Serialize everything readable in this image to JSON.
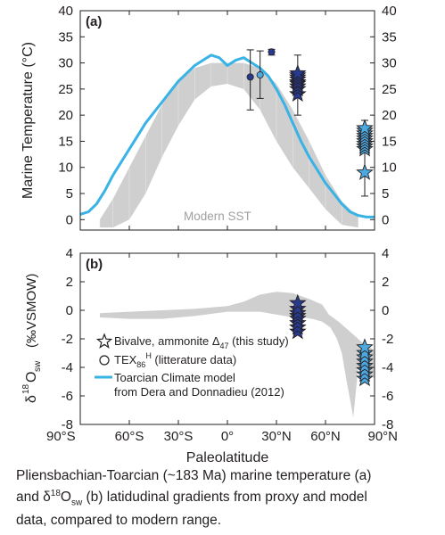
{
  "chart_data": [
    {
      "panel": "a",
      "panel_label": "(a)",
      "type": "line",
      "ylabel": "Marine Temperature (°C)",
      "ylim": [
        -2,
        40
      ],
      "yticks": [
        0,
        5,
        10,
        15,
        20,
        25,
        30,
        35,
        40
      ],
      "xlim": [
        -90,
        90
      ],
      "modern_label": "Modern SST",
      "modern_sst_range": {
        "lat": [
          -78,
          -70,
          -60,
          -50,
          -40,
          -30,
          -20,
          -10,
          0,
          10,
          20,
          30,
          40,
          50,
          60,
          70,
          80
        ],
        "lower": [
          -1.5,
          -1.5,
          0,
          5,
          12,
          18,
          23,
          25.5,
          26,
          25,
          21,
          15,
          10,
          6,
          2,
          -1,
          -1.5
        ],
        "upper": [
          0,
          4,
          10,
          16,
          22,
          26.5,
          29,
          30,
          30,
          30,
          29,
          26,
          21,
          15,
          8.5,
          3.5,
          0.5
        ]
      },
      "model_curve": {
        "lat": [
          -90,
          -85,
          -80,
          -75,
          -70,
          -65,
          -60,
          -55,
          -50,
          -45,
          -40,
          -35,
          -30,
          -25,
          -20,
          -15,
          -10,
          -5,
          0,
          5,
          10,
          15,
          20,
          25,
          30,
          35,
          40,
          45,
          50,
          55,
          60,
          65,
          70,
          75,
          80,
          85,
          90
        ],
        "temp": [
          1,
          1.5,
          3,
          5.5,
          8.5,
          11,
          13.5,
          16,
          18.5,
          20.5,
          22.5,
          24.5,
          26.5,
          28,
          29.5,
          30.5,
          31.5,
          31,
          29.5,
          30.5,
          31,
          30,
          29,
          27.5,
          25,
          22,
          18.5,
          15,
          12,
          9.5,
          7,
          5,
          3,
          1.5,
          0.8,
          0.5,
          0.5
        ]
      },
      "tex86_points": [
        {
          "lat": 14,
          "value": 27.3,
          "low": 21,
          "high": 32.5,
          "color": "#283a8e"
        },
        {
          "lat": 20,
          "value": 27.7,
          "low": 23.2,
          "high": 32.3,
          "color": "#4da8e0"
        },
        {
          "lat": 27,
          "value": 32.1,
          "low": 31.5,
          "high": 32.6,
          "color": "#283a8e"
        }
      ],
      "bivalve_groups": [
        {
          "lat": 43,
          "values": [
            24,
            25,
            25.5,
            26,
            26.3,
            26.8,
            27.2,
            27.6,
            28
          ],
          "low": 20,
          "high": 31.5,
          "color": "#283a8e"
        },
        {
          "lat": 84,
          "values": [
            9,
            13.5,
            14,
            14.5,
            15,
            15.5,
            16,
            16.5,
            17,
            17.5
          ],
          "low": 4.5,
          "high": 19,
          "color": "#4da8e0"
        }
      ]
    },
    {
      "panel": "b",
      "panel_label": "(b)",
      "type": "area",
      "ylabel_main": "δ",
      "ylabel_sup": "18",
      "ylabel_mid": "O",
      "ylabel_sub": "sw",
      "ylabel_unit": "(‰VSMOW)",
      "ylim": [
        -8,
        4
      ],
      "yticks": [
        4,
        2,
        0,
        -2,
        -4,
        -6,
        -8
      ],
      "xlim": [
        -90,
        90
      ],
      "xticks": [
        "90°S",
        "60°S",
        "30°S",
        "0°",
        "30°N",
        "60°N",
        "90°N"
      ],
      "xtick_values": [
        -90,
        -60,
        -30,
        0,
        30,
        60,
        90
      ],
      "xlabel": "Paleolatitude",
      "modern_range_upper": {
        "lat": [
          -78,
          -60,
          -40,
          -20,
          0,
          10,
          20,
          30,
          40,
          50,
          58,
          62,
          68,
          75,
          82,
          90
        ],
        "val": [
          -0.2,
          -0.1,
          0,
          0.1,
          0.3,
          0.6,
          1.1,
          1.3,
          1.2,
          0.8,
          0.4,
          -0.3,
          -0.8,
          -1.5,
          -2.2,
          -2.8
        ]
      },
      "modern_range_lower": {
        "lat": [
          90,
          84,
          80,
          77,
          73,
          70,
          67,
          63,
          58,
          52,
          46,
          40,
          30,
          20,
          10,
          0,
          -20,
          -40,
          -60,
          -78
        ],
        "val": [
          -4.8,
          -4.2,
          -4,
          -7.5,
          -5,
          -3,
          -2,
          -1.2,
          -0.8,
          -0.6,
          -0.5,
          -0.5,
          -0.3,
          -0.1,
          -0.1,
          -0.1,
          -0.4,
          -0.6,
          -0.6,
          -0.5
        ]
      },
      "bivalve_groups": [
        {
          "lat": 43,
          "values": [
            -1.5,
            -1.2,
            -0.9,
            -0.6,
            -0.4,
            -0.2,
            0.1,
            0.5
          ],
          "color": "#283a8e"
        },
        {
          "lat": 84,
          "values": [
            -4.8,
            -4.5,
            -4.2,
            -3.9,
            -3.6,
            -3.3,
            -3,
            -2.6
          ],
          "color": "#4da8e0"
        }
      ],
      "legend": [
        {
          "symbol": "star",
          "label": "Bivalve, ammonite Δ",
          "sub": "47",
          "tail": " (this study)"
        },
        {
          "symbol": "circle",
          "label": "TEX",
          "sub": "86",
          "sup": "H",
          "tail": "  (litterature data)"
        },
        {
          "symbol": "line",
          "label": "Toarcian Climate model",
          "line2": "from Dera and Donnadieu (2012)"
        }
      ]
    }
  ],
  "colors": {
    "model_line": "#39b2e6",
    "dark_marker": "#283a8e",
    "light_marker": "#4da8e0",
    "modern_fill": "#cfcfcf",
    "axis": "#231f20"
  },
  "caption": {
    "line1": "Pliensbachian-Toarcian (~183 Ma) marine temperature (a)",
    "line2_pre": "and δ",
    "line2_sup": "18",
    "line2_mid": "O",
    "line2_sub": "sw",
    "line2_post": " (b) latidudinal gradients from proxy and model",
    "line3": "data, compared to modern range."
  }
}
